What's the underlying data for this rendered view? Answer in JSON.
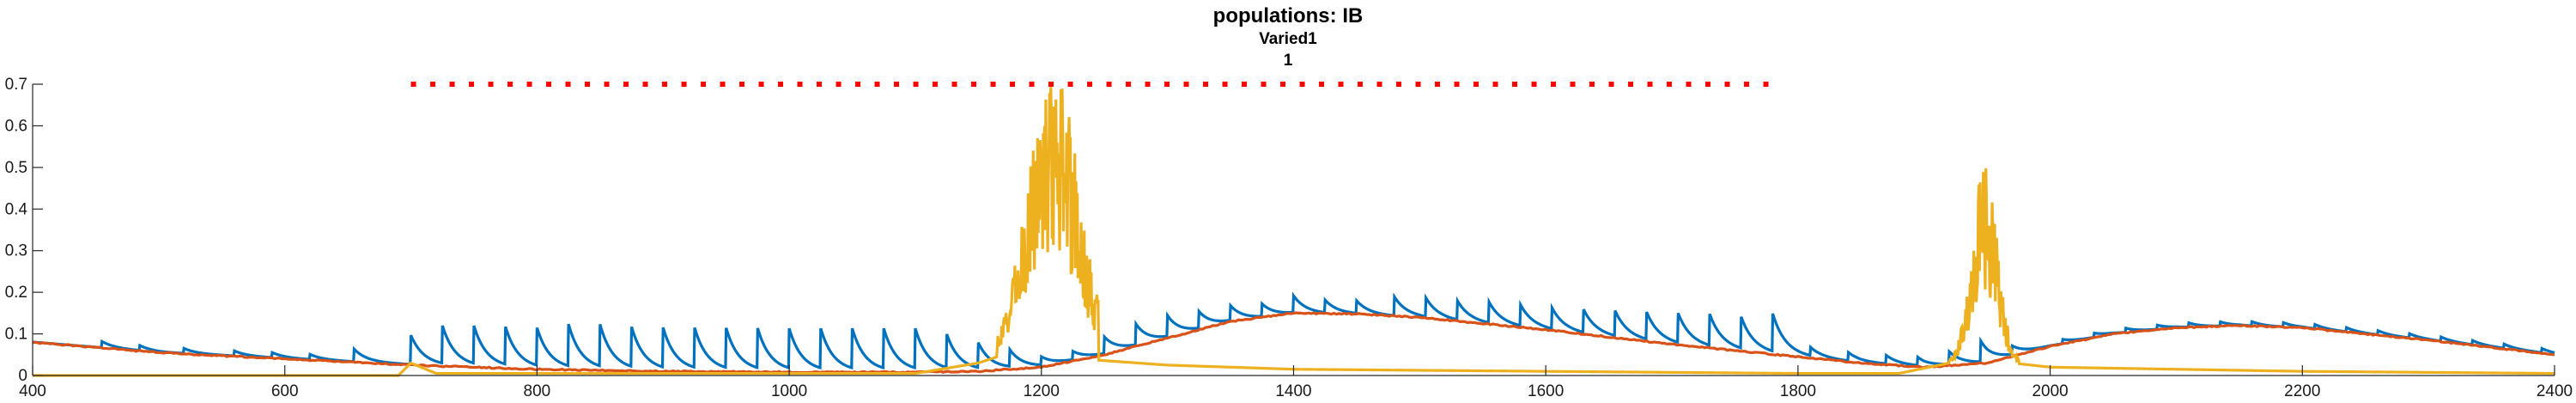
{
  "chart_data": {
    "type": "line",
    "title": "populations: IB",
    "subtitle_lines": [
      "Varied1",
      "1"
    ],
    "xlim": [
      400,
      2400
    ],
    "ylim": [
      0,
      0.7
    ],
    "x_ticks": [
      400,
      600,
      800,
      1000,
      1200,
      1400,
      1600,
      1800,
      2000,
      2200,
      2400
    ],
    "y_ticks": [
      0,
      0.1,
      0.2,
      0.3,
      0.4,
      0.5,
      0.6,
      0.7
    ],
    "x_tick_labels": [
      "400",
      "600",
      "800",
      "1000",
      "1200",
      "1400",
      "1600",
      "1800",
      "2000",
      "2200",
      "2400"
    ],
    "y_tick_labels": [
      "0",
      "0.1",
      "0.2",
      "0.3",
      "0.4",
      "0.5",
      "0.6",
      "0.7"
    ],
    "grid": false,
    "series": [
      {
        "color": "#0072BD",
        "style": "line",
        "pulses": {
          "times": [
            455,
            485,
            520,
            560,
            590,
            620,
            655,
            700,
            725,
            750,
            775,
            800,
            825,
            850,
            875,
            900,
            925,
            950,
            975,
            1000,
            1025,
            1050,
            1075,
            1100,
            1125,
            1150,
            1175,
            1200,
            1225,
            1250,
            1275,
            1300,
            1325,
            1350,
            1375,
            1400,
            1425,
            1450,
            1480,
            1505,
            1530,
            1555,
            1580,
            1605,
            1630,
            1655,
            1680,
            1705,
            1730,
            1755,
            1780,
            1810,
            1840,
            1870,
            1895,
            1920,
            1945,
            1970,
            2010,
            2035,
            2060,
            2085,
            2110,
            2135,
            2160,
            2185,
            2210,
            2235,
            2260,
            2285,
            2310,
            2335,
            2360,
            2390
          ],
          "amplitudes": [
            0.015,
            0.012,
            0.012,
            0.012,
            0.012,
            0.012,
            0.03,
            0.07,
            0.09,
            0.09,
            0.09,
            0.09,
            0.1,
            0.1,
            0.095,
            0.095,
            0.095,
            0.095,
            0.095,
            0.095,
            0.095,
            0.095,
            0.095,
            0.095,
            0.08,
            0.06,
            0.04,
            0.02,
            0.02,
            0.04,
            0.05,
            0.05,
            0.04,
            0.035,
            0.03,
            0.04,
            0.03,
            0.03,
            0.045,
            0.045,
            0.045,
            0.05,
            0.05,
            0.05,
            0.055,
            0.06,
            0.065,
            0.07,
            0.075,
            0.075,
            0.09,
            0.02,
            0.02,
            0.02,
            0.02,
            0.03,
            0.05,
            0.02,
            0.01,
            0.01,
            0.01,
            0.01,
            0.01,
            0.01,
            0.01,
            0.01,
            0.01,
            0.01,
            0.01,
            0.01,
            0.01,
            0.01,
            0.01,
            0.01
          ],
          "decay": 10
        }
      },
      {
        "color": "#D95319",
        "style": "line",
        "points": [
          [
            400,
            0.08
          ],
          [
            500,
            0.055
          ],
          [
            600,
            0.04
          ],
          [
            700,
            0.025
          ],
          [
            800,
            0.015
          ],
          [
            900,
            0.01
          ],
          [
            1000,
            0.008
          ],
          [
            1100,
            0.008
          ],
          [
            1150,
            0.01
          ],
          [
            1200,
            0.02
          ],
          [
            1250,
            0.05
          ],
          [
            1300,
            0.09
          ],
          [
            1350,
            0.13
          ],
          [
            1400,
            0.15
          ],
          [
            1450,
            0.148
          ],
          [
            1500,
            0.14
          ],
          [
            1600,
            0.11
          ],
          [
            1700,
            0.075
          ],
          [
            1800,
            0.045
          ],
          [
            1850,
            0.03
          ],
          [
            1900,
            0.02
          ],
          [
            1950,
            0.03
          ],
          [
            2000,
            0.07
          ],
          [
            2050,
            0.1
          ],
          [
            2100,
            0.115
          ],
          [
            2150,
            0.12
          ],
          [
            2200,
            0.115
          ],
          [
            2300,
            0.085
          ],
          [
            2400,
            0.05
          ]
        ]
      },
      {
        "color": "#EDB120",
        "style": "line",
        "baseline": [
          [
            400,
            0.0
          ],
          [
            690,
            0.0
          ],
          [
            700,
            0.03
          ],
          [
            720,
            0.005
          ],
          [
            1100,
            0.005
          ],
          [
            1150,
            0.03
          ],
          [
            1180,
            0.06
          ],
          [
            1230,
            0.04
          ],
          [
            1300,
            0.025
          ],
          [
            1400,
            0.015
          ],
          [
            1600,
            0.01
          ],
          [
            1800,
            0.005
          ],
          [
            1880,
            0.005
          ],
          [
            1920,
            0.03
          ],
          [
            1970,
            0.03
          ],
          [
            2000,
            0.02
          ],
          [
            2100,
            0.015
          ],
          [
            2200,
            0.01
          ],
          [
            2400,
            0.005
          ]
        ],
        "bursts": [
          {
            "center": 1210,
            "width": 28,
            "peak": 0.7,
            "from": 1165,
            "to": 1245
          },
          {
            "center": 1948,
            "width": 14,
            "peak": 0.48,
            "from": 1920,
            "to": 1975
          }
        ]
      },
      {
        "color": "#FF0000",
        "style": "dotted",
        "y": 0.7,
        "x_range": [
          700,
          1780
        ]
      }
    ]
  }
}
